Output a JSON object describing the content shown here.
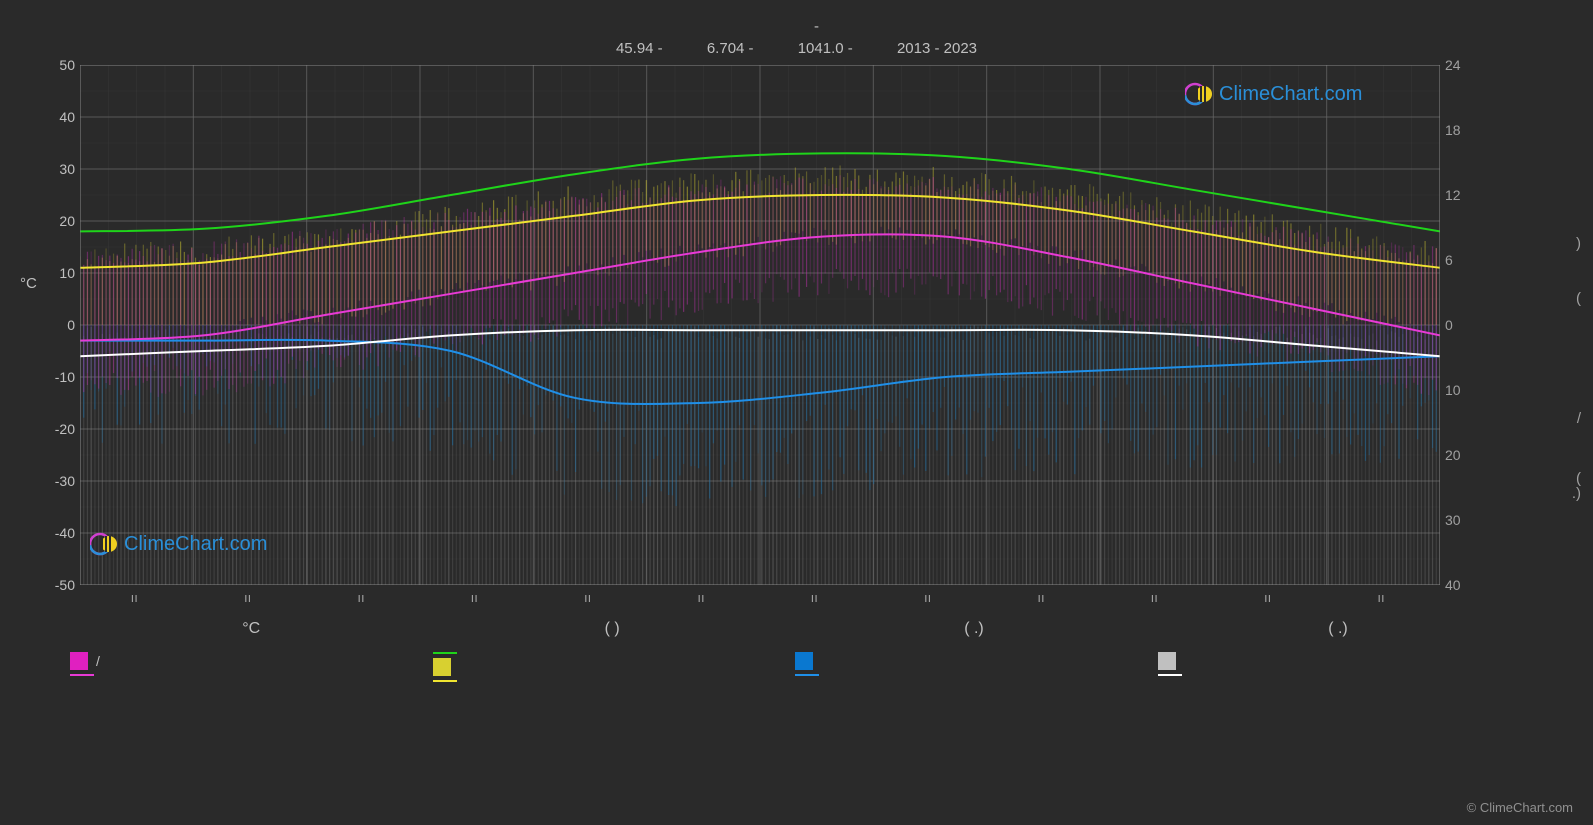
{
  "header": {
    "lat": "45.94 -",
    "lon": "6.704 -",
    "elev": "1041.0 -",
    "years": "2013 - 2023",
    "dash": "-"
  },
  "chart": {
    "type": "climate-composite",
    "background_color": "#2a2a2a",
    "plot_bg": "#2a2a2a",
    "grid_color": "#707070",
    "grid_minor_color": "#4a4a4a",
    "y_left": {
      "label": "°C",
      "min": -50,
      "max": 50,
      "tick_step": 10,
      "ticks": [
        50,
        40,
        30,
        20,
        10,
        0,
        -10,
        -20,
        -30,
        -40,
        -50
      ],
      "color": "#c0c0c0",
      "fontsize": 14
    },
    "y_right_top": {
      "min": 0,
      "max": 24,
      "tick_step": 6,
      "ticks": [
        24,
        18,
        12,
        6,
        0
      ],
      "color": "#a0a0a0"
    },
    "y_right_bottom": {
      "min": 0,
      "max": 40,
      "tick_step": 10,
      "ticks": [
        10,
        20,
        30,
        40
      ],
      "color": "#a0a0a0"
    },
    "right_unit_paren_top": ")",
    "right_unit_paren_mid": "(",
    "right_slash": "/",
    "right_paren_bot1": "(",
    "right_paren_bot2": ".)",
    "months_n": 12,
    "month_tick_label": "ıı",
    "lines": {
      "green_max": {
        "color": "#1fd41a",
        "width": 2,
        "values": [
          18,
          18.5,
          21,
          25,
          29,
          32,
          33,
          32.5,
          30,
          26,
          22,
          18
        ]
      },
      "yellow_mean_high": {
        "color": "#f0e530",
        "width": 2,
        "values": [
          11,
          12,
          15,
          18,
          21,
          24,
          25,
          24.5,
          22,
          18,
          14,
          11
        ]
      },
      "magenta_mean_low": {
        "color": "#e83ad6",
        "width": 2,
        "values": [
          -3,
          -2,
          2,
          6,
          10,
          14,
          17,
          17,
          13,
          8,
          3,
          -2
        ]
      },
      "white_sun": {
        "color": "#ffffff",
        "width": 2,
        "values": [
          -6,
          -5,
          -4,
          -2,
          -1,
          -1,
          -1,
          -1,
          -1,
          -2,
          -4,
          -6
        ]
      },
      "blue_precip": {
        "color": "#1f8fe8",
        "width": 2,
        "values": [
          -3,
          -3,
          -3,
          -5,
          -14,
          -15,
          -13,
          -10,
          -9,
          -8,
          -7,
          -6
        ]
      }
    },
    "band_colors": {
      "magenta_band": "#c432b188",
      "yellow_band": "#b8b03088",
      "blue_band": "#1a6fa888",
      "grey_band": "#80808055"
    }
  },
  "legend": {
    "row1": {
      "c1": "°C",
      "c2": "(          )",
      "c3": "(   .)",
      "c4": "(   .)"
    },
    "col1": {
      "swatch_color": "#e020c0",
      "label1": "/",
      "line_color": "#e83ad6",
      "label2": ""
    },
    "col2": {
      "line1_color": "#1fd41a",
      "label1": "",
      "swatch_color": "#d8d030",
      "label2": "",
      "line2_color": "#f0e530",
      "label3": ""
    },
    "col3": {
      "swatch_color": "#0a78d0",
      "label1": "",
      "line_color": "#1f8fe8",
      "label2": ""
    },
    "col4": {
      "swatch_color": "#c0c0c0",
      "label1": "",
      "line_color": "#ffffff",
      "label2": ""
    }
  },
  "branding": {
    "text": "ClimeChart.com",
    "color": "#2a8fd8"
  },
  "copyright": "© ClimeChart.com"
}
